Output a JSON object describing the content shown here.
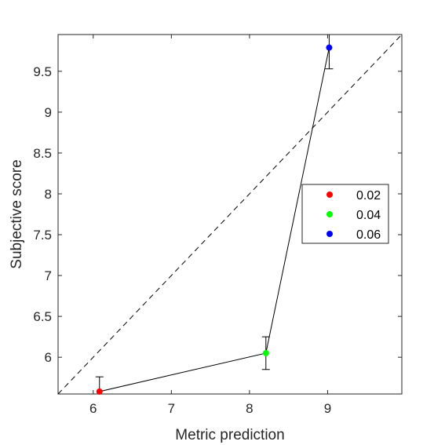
{
  "chart_data": {
    "type": "scatter",
    "title": "",
    "xlabel": "Metric prediction",
    "ylabel": "Subjective score",
    "xlim": [
      5.55,
      9.95
    ],
    "ylim": [
      5.55,
      9.95
    ],
    "xticks": [
      6,
      7,
      8,
      9
    ],
    "xtick_labels": [
      "6",
      "7",
      "8",
      "9"
    ],
    "yticks": [
      6,
      6.5,
      7,
      7.5,
      8,
      8.5,
      9,
      9.5
    ],
    "ytick_labels": [
      "6",
      "6.5",
      "7",
      "7.5",
      "8",
      "8.5",
      "9",
      "9.5"
    ],
    "grid": false,
    "reference_line": {
      "style": "dashed",
      "description": "y = x"
    },
    "connect_points": true,
    "legend_position": "right",
    "series": [
      {
        "name": "0.02",
        "color": "#ff0000",
        "x": 6.08,
        "y": 5.58,
        "err_low": 0.18,
        "err_high": 0.18
      },
      {
        "name": "0.04",
        "color": "#00ff00",
        "x": 8.21,
        "y": 6.05,
        "err_low": 0.2,
        "err_high": 0.2
      },
      {
        "name": "0.06",
        "color": "#0000ff",
        "x": 9.02,
        "y": 9.79,
        "err_low": 0.26,
        "err_high": 0.26
      }
    ]
  }
}
